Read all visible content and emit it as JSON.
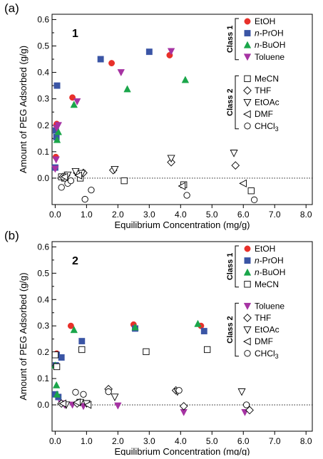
{
  "colors": {
    "EtOH": "#e8302a",
    "n-PrOH": "#3a55a5",
    "n-BuOH": "#1aa64a",
    "Toluene": "#a633a3",
    "open": "#000000"
  },
  "chart_data": [
    {
      "type": "scatter",
      "panel_label": "(a)",
      "sample_label": "1",
      "xlabel": "Equilibrium Concentration (mg/g)",
      "ylabel": "Amount of PEG Adsorbed (g/g)",
      "xlim": [
        -0.1,
        8.2
      ],
      "ylim": [
        -0.1,
        0.62
      ],
      "xticks": [
        "0.0",
        "1.0",
        "2.0",
        "3.0",
        "4.0",
        "5.0",
        "6.0",
        "7.0",
        "8.0"
      ],
      "yticks": [
        "0.0",
        "0.1",
        "0.2",
        "0.3",
        "0.4",
        "0.5",
        "0.6"
      ],
      "dotted_zero_line": true,
      "legend_groups": [
        {
          "label": "Class 1",
          "entries": [
            "EtOH",
            "n-PrOH",
            "n-BuOH",
            "Toluene"
          ]
        },
        {
          "label": "Class 2",
          "entries": [
            "MeCN",
            "THF",
            "EtOAc",
            "DMF",
            "CHCl3"
          ]
        }
      ],
      "series": [
        {
          "name": "EtOH",
          "marker": "circle-filled",
          "color": "#e8302a",
          "points": [
            [
              0.02,
              0.08
            ],
            [
              0.04,
              0.2
            ],
            [
              0.05,
              0.205
            ],
            [
              0.55,
              0.305
            ],
            [
              1.8,
              0.435
            ],
            [
              3.65,
              0.465
            ]
          ]
        },
        {
          "name": "n-PrOH",
          "marker": "square-filled",
          "color": "#3a55a5",
          "points": [
            [
              0.0,
              0.04
            ],
            [
              0.02,
              0.18
            ],
            [
              0.04,
              0.155
            ],
            [
              0.06,
              0.35
            ],
            [
              1.45,
              0.45
            ],
            [
              3.0,
              0.478
            ]
          ]
        },
        {
          "name": "n-BuOH",
          "marker": "triangle-up-filled",
          "color": "#1aa64a",
          "points": [
            [
              0.06,
              0.145
            ],
            [
              0.1,
              0.175
            ],
            [
              0.6,
              0.278
            ],
            [
              2.3,
              0.337
            ],
            [
              4.15,
              0.372
            ]
          ]
        },
        {
          "name": "Toluene",
          "marker": "triangle-down-filled",
          "color": "#a633a3",
          "points": [
            [
              0.0,
              0.035
            ],
            [
              0.03,
              0.07
            ],
            [
              0.05,
              0.19
            ],
            [
              0.1,
              0.2
            ],
            [
              0.7,
              0.29
            ],
            [
              2.1,
              0.4
            ],
            [
              3.7,
              0.48
            ]
          ]
        },
        {
          "name": "MeCN",
          "marker": "square-open",
          "points": [
            [
              0.2,
              0.005
            ],
            [
              0.3,
              0.0
            ],
            [
              0.8,
              0.0
            ],
            [
              2.2,
              -0.01
            ],
            [
              4.1,
              -0.025
            ],
            [
              6.25,
              -0.048
            ]
          ]
        },
        {
          "name": "THF",
          "marker": "diamond-open",
          "points": [
            [
              0.25,
              0.005
            ],
            [
              0.35,
              0.01
            ],
            [
              0.7,
              0.02
            ],
            [
              0.9,
              0.02
            ],
            [
              1.85,
              0.03
            ],
            [
              3.7,
              0.06
            ],
            [
              5.75,
              0.048
            ]
          ]
        },
        {
          "name": "EtOAc",
          "marker": "triangle-down-open",
          "points": [
            [
              0.4,
              0.012
            ],
            [
              0.65,
              0.025
            ],
            [
              0.85,
              0.018
            ],
            [
              1.9,
              0.033
            ],
            [
              3.7,
              0.075
            ],
            [
              5.7,
              0.095
            ]
          ]
        },
        {
          "name": "DMF",
          "marker": "triangle-left-open",
          "points": [
            [
              0.3,
              0.005
            ],
            [
              0.75,
              0.01
            ],
            [
              4.05,
              -0.03
            ],
            [
              6.0,
              -0.02
            ]
          ]
        },
        {
          "name": "CHCl3",
          "marker": "circle-open",
          "points": [
            [
              0.2,
              -0.035
            ],
            [
              0.4,
              -0.02
            ],
            [
              0.5,
              -0.01
            ],
            [
              0.95,
              -0.08
            ],
            [
              1.15,
              -0.045
            ],
            [
              4.2,
              -0.065
            ],
            [
              6.35,
              -0.082
            ]
          ]
        }
      ]
    },
    {
      "type": "scatter",
      "panel_label": "(b)",
      "sample_label": "2",
      "xlabel": "Equilibrium Concentration (mg/g)",
      "ylabel": "Amount of PEG Adsorbed (g/g)",
      "xlim": [
        -0.1,
        8.2
      ],
      "ylim": [
        -0.1,
        0.62
      ],
      "xticks": [
        "0.0",
        "1.0",
        "2.0",
        "3.0",
        "4.0",
        "5.0",
        "6.0",
        "7.0",
        "8.0"
      ],
      "yticks": [
        "0.0",
        "0.1",
        "0.2",
        "0.3",
        "0.4",
        "0.5",
        "0.6"
      ],
      "dotted_zero_line": true,
      "legend_groups": [
        {
          "label": "Class 1",
          "entries": [
            "EtOH",
            "n-PrOH",
            "n-BuOH",
            "MeCN"
          ]
        },
        {
          "label": "Class 2",
          "entries": [
            "Toluene",
            "THF",
            "EtOAc",
            "DMF",
            "CHCl3"
          ]
        }
      ],
      "series": [
        {
          "name": "EtOH",
          "marker": "circle-filled",
          "color": "#e8302a",
          "points": [
            [
              0.02,
              0.19
            ],
            [
              0.05,
              0.195
            ],
            [
              0.5,
              0.3
            ],
            [
              2.5,
              0.305
            ],
            [
              4.65,
              0.3
            ]
          ]
        },
        {
          "name": "n-PrOH",
          "marker": "square-filled",
          "color": "#3a55a5",
          "points": [
            [
              0.0,
              0.04
            ],
            [
              0.02,
              0.15
            ],
            [
              0.05,
              0.19
            ],
            [
              0.1,
              0.03
            ],
            [
              0.2,
              0.18
            ],
            [
              0.85,
              0.242
            ],
            [
              2.55,
              0.29
            ],
            [
              4.75,
              0.28
            ]
          ]
        },
        {
          "name": "n-BuOH",
          "marker": "triangle-up-filled",
          "color": "#1aa64a",
          "points": [
            [
              0.0,
              0.15
            ],
            [
              0.04,
              0.075
            ],
            [
              0.06,
              0.04
            ],
            [
              0.6,
              0.285
            ],
            [
              2.55,
              0.295
            ],
            [
              4.55,
              0.308
            ]
          ]
        },
        {
          "name": "MeCN",
          "marker": "square-open",
          "points": [
            [
              0.0,
              0.19
            ],
            [
              0.05,
              0.145
            ],
            [
              0.85,
              0.21
            ],
            [
              2.9,
              0.202
            ],
            [
              4.85,
              0.21
            ]
          ]
        },
        {
          "name": "Toluene",
          "marker": "triangle-down-filled",
          "color": "#a633a3",
          "points": [
            [
              0.2,
              0.005
            ],
            [
              0.3,
              0.0
            ],
            [
              0.55,
              0.0
            ],
            [
              0.9,
              -0.005
            ],
            [
              2.0,
              -0.003
            ],
            [
              4.1,
              -0.028
            ],
            [
              6.05,
              -0.028
            ]
          ]
        },
        {
          "name": "THF",
          "marker": "diamond-open",
          "points": [
            [
              0.2,
              0.005
            ],
            [
              0.7,
              0.005
            ],
            [
              1.7,
              0.06
            ],
            [
              3.85,
              0.055
            ],
            [
              4.1,
              -0.005
            ],
            [
              6.2,
              -0.02
            ]
          ]
        },
        {
          "name": "EtOAc",
          "marker": "triangle-down-open",
          "points": [
            [
              0.35,
              0.0
            ],
            [
              0.8,
              0.01
            ],
            [
              1.0,
              0.005
            ],
            [
              1.9,
              0.03
            ],
            [
              3.9,
              0.05
            ],
            [
              5.95,
              0.05
            ]
          ]
        },
        {
          "name": "DMF",
          "marker": "triangle-left-open",
          "points": [
            [
              0.25,
              0.005
            ],
            [
              0.7,
              0.01
            ],
            [
              1.05,
              0.0
            ]
          ]
        },
        {
          "name": "CHCl3",
          "marker": "circle-open",
          "points": [
            [
              0.65,
              0.048
            ],
            [
              0.9,
              0.04
            ],
            [
              1.7,
              0.05
            ],
            [
              3.95,
              0.055
            ],
            [
              6.1,
              0.0
            ]
          ]
        }
      ]
    }
  ],
  "legend_labels": {
    "EtOH": "EtOH",
    "n-PrOH": "-PrOH",
    "n-BuOH": "-BuOH",
    "Toluene": "Toluene",
    "MeCN": "MeCN",
    "THF": "THF",
    "EtOAc": "EtOAc",
    "DMF": "DMF",
    "CHCl3": "CHCl"
  }
}
